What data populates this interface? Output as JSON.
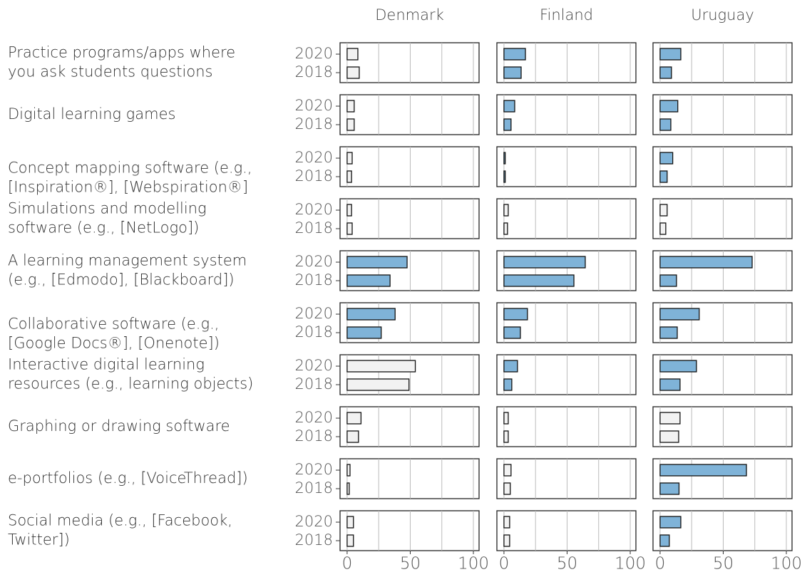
{
  "chart_data": {
    "type": "bar",
    "categories": [
      [
        "Practice programs/apps where",
        "you ask students questions"
      ],
      [
        "Digital learning games"
      ],
      [
        "Concept mapping software (e.g.,",
        "[Inspiration®], [Webspiration®]"
      ],
      [
        "Simulations and modelling",
        "software (e.g., [NetLogo])"
      ],
      [
        "A learning management system",
        "(e.g., [Edmodo], [Blackboard])"
      ],
      [
        "Collaborative software (e.g.,",
        "[Google Docs®], [Onenote])"
      ],
      [
        "Interactive digital learning",
        "resources (e.g., learning objects)"
      ],
      [
        "Graphing or drawing software"
      ],
      [
        "e-portfolios (e.g., [VoiceThread])"
      ],
      [
        "Social media (e.g., [Facebook,",
        "Twitter])"
      ]
    ],
    "panels": [
      {
        "name": "Denmark",
        "series": [
          {
            "name": "2020",
            "values": [
              8.5,
              5.6,
              4,
              3.5,
              47.5,
              38,
              54,
              11,
              2.3,
              5
            ],
            "colors": [
              "#f2f2f2",
              "#f2f2f2",
              "#f2f2f2",
              "#f2f2f2",
              "#7fb3d8",
              "#7fb3d8",
              "#f2f2f2",
              "#f2f2f2",
              "#f2f2f2",
              "#f2f2f2"
            ]
          },
          {
            "name": "2018",
            "values": [
              9.6,
              5.6,
              3.5,
              4,
              34,
              27,
              49,
              9,
              1.7,
              5
            ],
            "colors": [
              "#f2f2f2",
              "#f2f2f2",
              "#f2f2f2",
              "#f2f2f2",
              "#7fb3d8",
              "#7fb3d8",
              "#f2f2f2",
              "#f2f2f2",
              "#f2f2f2",
              "#f2f2f2"
            ]
          }
        ]
      },
      {
        "name": "Finland",
        "series": [
          {
            "name": "2020",
            "values": [
              17,
              8.5,
              1,
              3.4,
              64.4,
              18.6,
              10.7,
              3.4,
              5.6,
              4.5
            ],
            "colors": [
              "#7fb3d8",
              "#7fb3d8",
              "#7fb3d8",
              "#f2f2f2",
              "#7fb3d8",
              "#7fb3d8",
              "#7fb3d8",
              "#f2f2f2",
              "#f2f2f2",
              "#f2f2f2"
            ]
          },
          {
            "name": "2018",
            "values": [
              13.6,
              5.6,
              1,
              2.8,
              55.4,
              13,
              6.2,
              3.4,
              5,
              4.5
            ],
            "colors": [
              "#7fb3d8",
              "#7fb3d8",
              "#7fb3d8",
              "#f2f2f2",
              "#7fb3d8",
              "#7fb3d8",
              "#7fb3d8",
              "#f2f2f2",
              "#f2f2f2",
              "#f2f2f2"
            ]
          }
        ]
      },
      {
        "name": "Uruguay",
        "series": [
          {
            "name": "2020",
            "values": [
              16.4,
              14,
              10,
              5.6,
              72.9,
              31,
              28.8,
              15.8,
              68.4,
              16.4
            ],
            "colors": [
              "#7fb3d8",
              "#7fb3d8",
              "#7fb3d8",
              "#f2f2f2",
              "#7fb3d8",
              "#7fb3d8",
              "#7fb3d8",
              "#f2f2f2",
              "#7fb3d8",
              "#7fb3d8"
            ]
          },
          {
            "name": "2018",
            "values": [
              9,
              8.5,
              5.6,
              4.5,
              13,
              13.6,
              15.8,
              14.7,
              15,
              7.3
            ],
            "colors": [
              "#7fb3d8",
              "#7fb3d8",
              "#7fb3d8",
              "#f2f2f2",
              "#7fb3d8",
              "#7fb3d8",
              "#7fb3d8",
              "#f2f2f2",
              "#7fb3d8",
              "#7fb3d8"
            ]
          }
        ]
      }
    ],
    "xlim": [
      -5.6,
      104.5
    ],
    "xticks": [
      0,
      50,
      100
    ],
    "minor_xticks": [
      25,
      75
    ],
    "grid": true
  }
}
